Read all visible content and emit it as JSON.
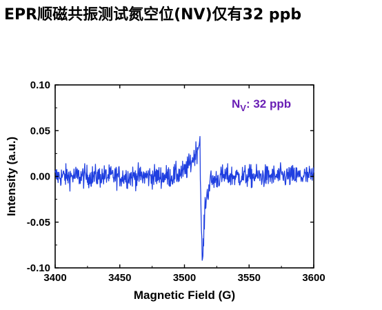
{
  "page_title": "EPR顺磁共振测试氮空位(NV)仅有32 ppb",
  "chart_data": {
    "type": "line",
    "title": "",
    "xlabel": "Magnetic Field (G)",
    "ylabel": "Intensity (a.u.)",
    "xlim": [
      3400,
      3600
    ],
    "ylim": [
      -0.1,
      0.1
    ],
    "x_ticks": [
      "3400",
      "3450",
      "3500",
      "3550",
      "3600"
    ],
    "y_ticks": [
      "-0.10",
      "-0.05",
      "0.00",
      "0.05",
      "0.10"
    ],
    "grid": false,
    "legend": "none",
    "annotation": {
      "main": "N",
      "sub": "V",
      "rest": ": 32 ppb"
    },
    "series": [
      {
        "color": "#1f3fe0",
        "x": [
          3400,
          3410,
          3420,
          3430,
          3440,
          3450,
          3460,
          3470,
          3480,
          3490,
          3500,
          3505,
          3510,
          3512,
          3513,
          3514,
          3516,
          3520,
          3530,
          3540,
          3550,
          3560,
          3570,
          3580,
          3590,
          3600
        ],
        "y": [
          0.0,
          0.0,
          0.0,
          0.0,
          0.0,
          0.0,
          0.0,
          0.0,
          0.0,
          0.0,
          0.005,
          0.015,
          0.03,
          0.04,
          -0.06,
          -0.095,
          -0.03,
          -0.005,
          0.0,
          0.0,
          0.0,
          0.0,
          0.0,
          0.0,
          0.0,
          0.0
        ],
        "noise_amplitude": 0.022
      }
    ],
    "colors": {
      "axis": "#000000",
      "line": "#1f3fe0",
      "annotation": "#6a1fb5"
    }
  }
}
